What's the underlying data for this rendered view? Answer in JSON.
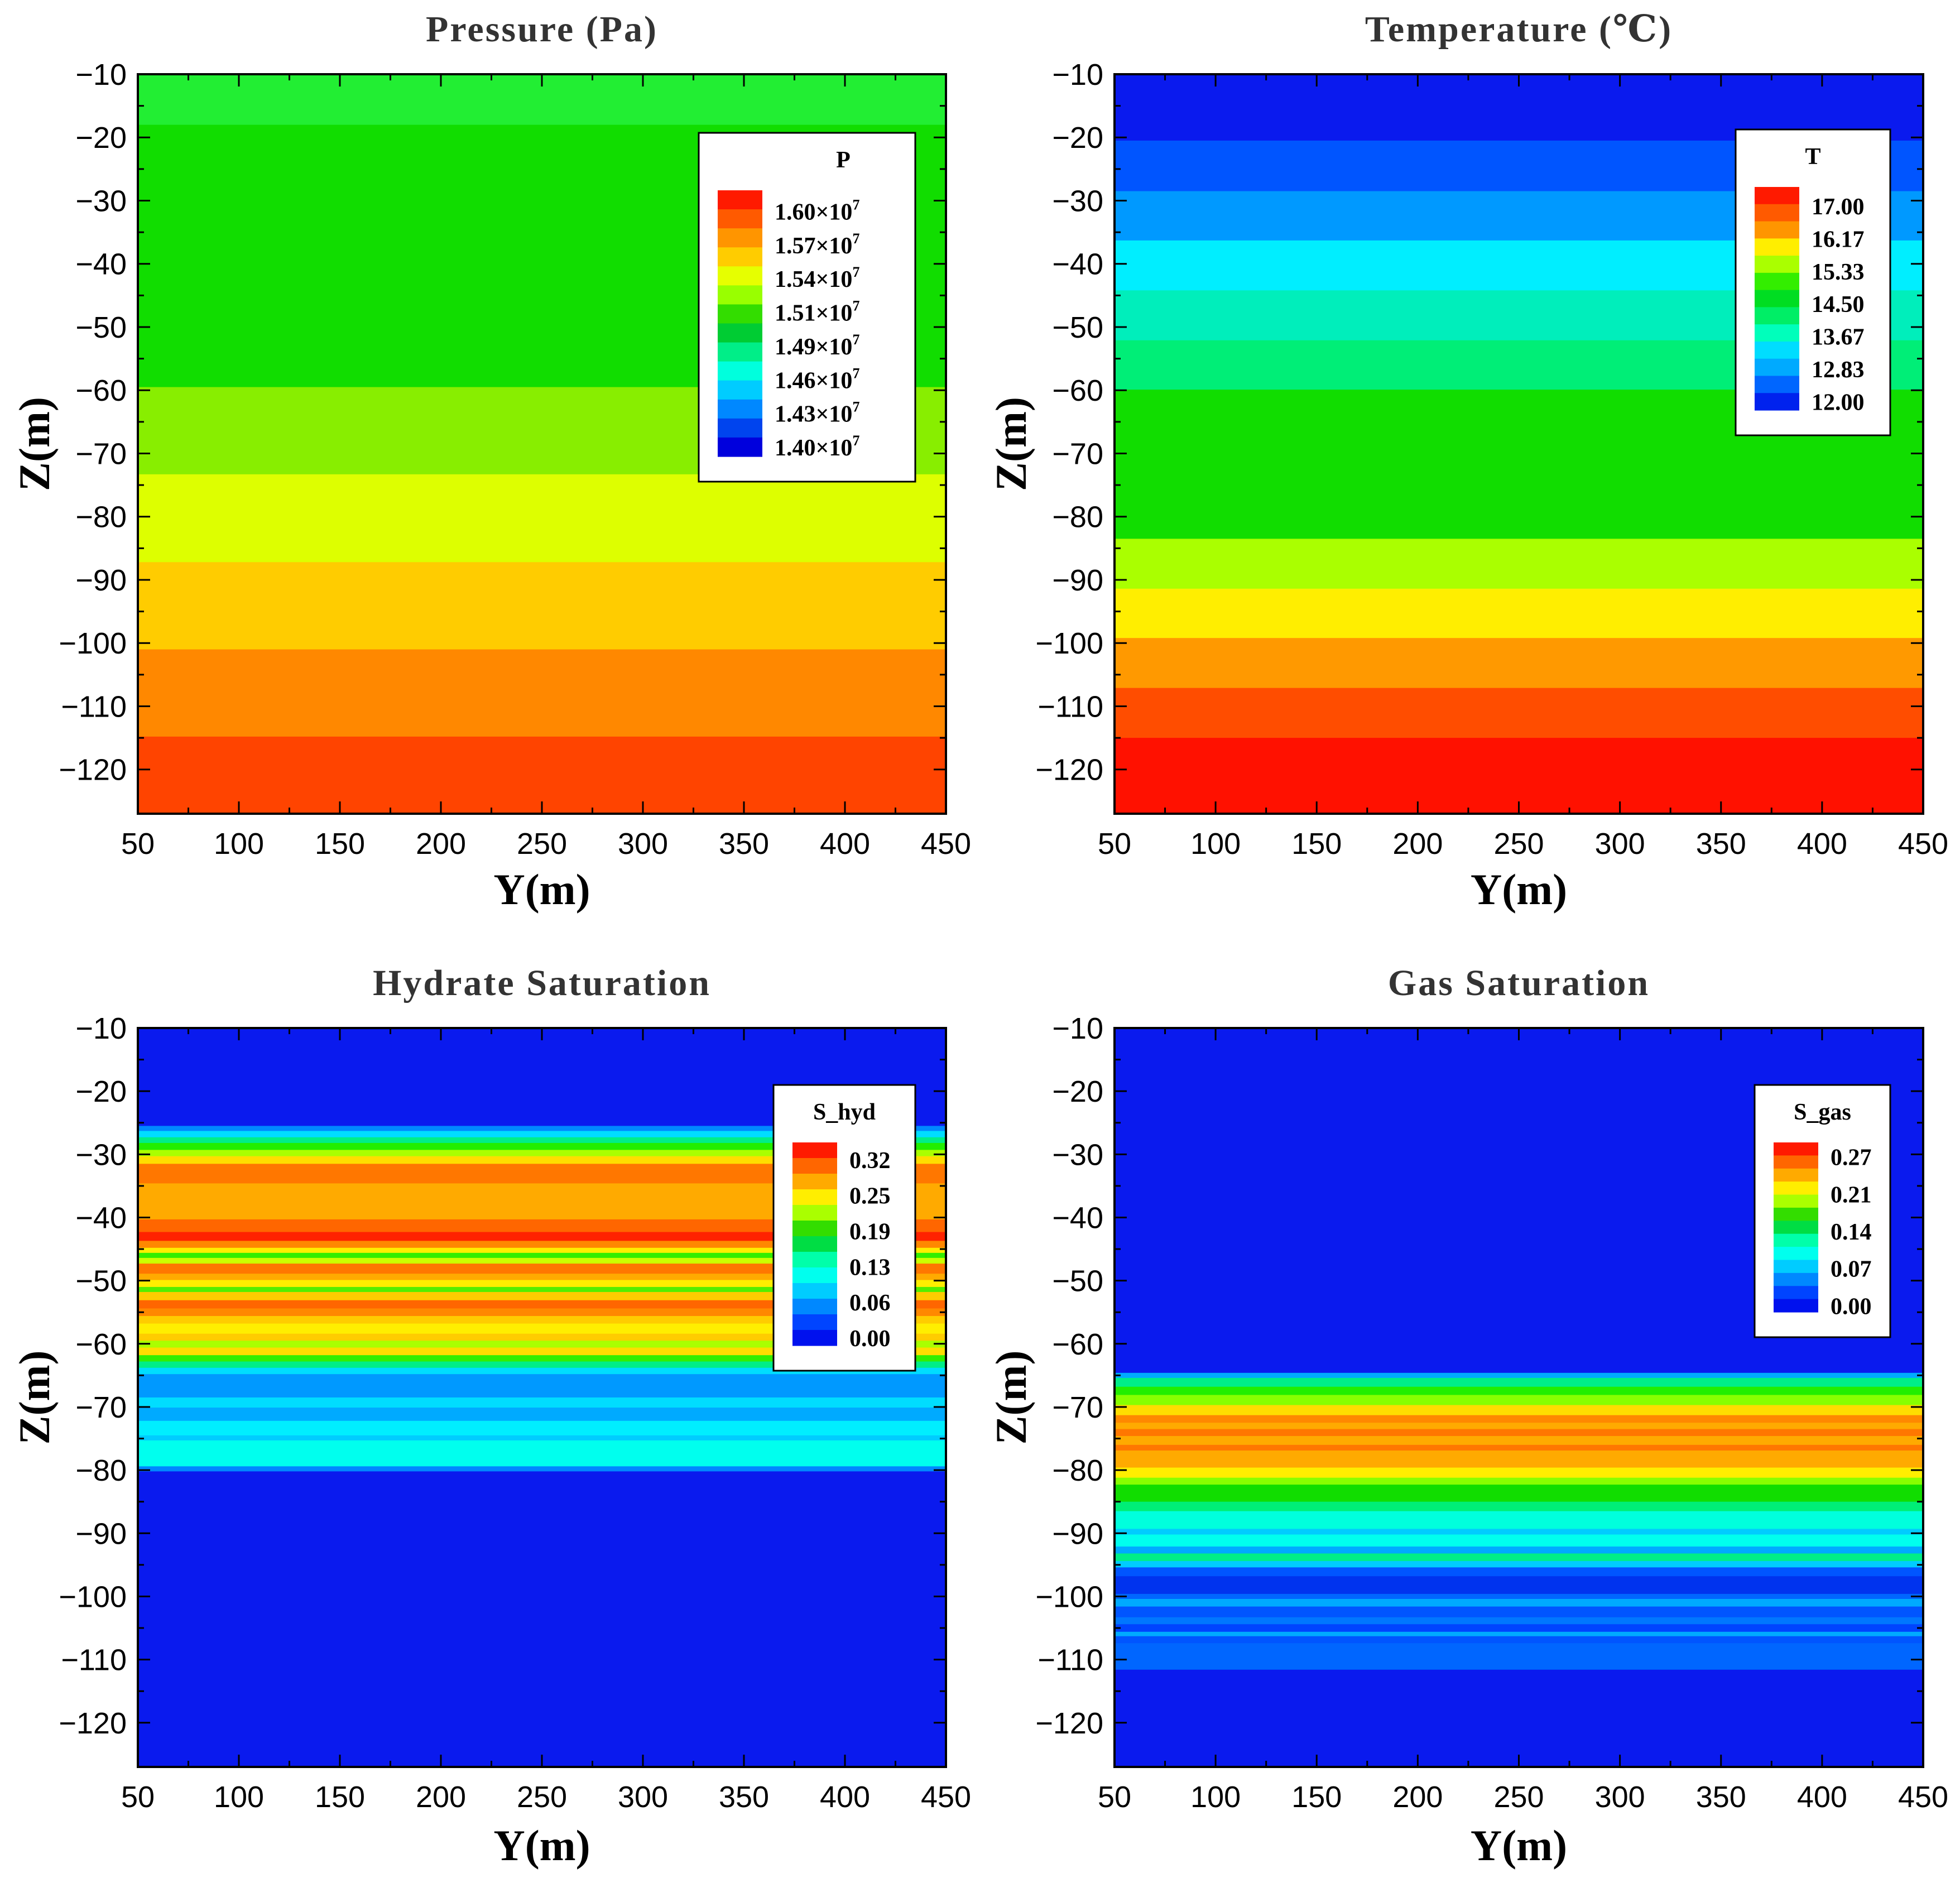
{
  "chart_data": [
    {
      "type": "heatmap",
      "title": "Pressure (Pa)",
      "xlabel": "Y(m)",
      "ylabel": "Z(m)",
      "xlim": [
        50,
        450
      ],
      "ylim": [
        -127,
        -10
      ],
      "xticks": [
        "50",
        "100",
        "150",
        "200",
        "250",
        "300",
        "350",
        "400",
        "450"
      ],
      "yticks": [
        "-10",
        "-20",
        "-30",
        "-40",
        "-50",
        "-60",
        "-70",
        "-80",
        "-90",
        "-100",
        "-110",
        "-120"
      ],
      "legend": {
        "title": "P",
        "position": "top-right",
        "labels": [
          {
            "mantissa": "1.60×10",
            "exp": "7"
          },
          {
            "mantissa": "1.57×10",
            "exp": "7"
          },
          {
            "mantissa": "1.54×10",
            "exp": "7"
          },
          {
            "mantissa": "1.51×10",
            "exp": "7"
          },
          {
            "mantissa": "1.49×10",
            "exp": "7"
          },
          {
            "mantissa": "1.46×10",
            "exp": "7"
          },
          {
            "mantissa": "1.43×10",
            "exp": "7"
          },
          {
            "mantissa": "1.40×10",
            "exp": "7"
          }
        ],
        "colors": [
          "#ff1a00",
          "#ff5a00",
          "#ff9500",
          "#ffcc00",
          "#e6ff00",
          "#99ff00",
          "#33dd00",
          "#00cc33",
          "#00ee88",
          "#00ffdd",
          "#00ccff",
          "#0088ff",
          "#0044ee",
          "#0000dd"
        ]
      },
      "bands": [
        {
          "z_top": -10,
          "z_bottom": -18,
          "color": "#22ee33"
        },
        {
          "z_top": -18,
          "z_bottom": -59.5,
          "color": "#11dd00"
        },
        {
          "z_top": -59.5,
          "z_bottom": -73.3,
          "color": "#88ee00"
        },
        {
          "z_top": -73.3,
          "z_bottom": -87.2,
          "color": "#ddff00"
        },
        {
          "z_top": -87.2,
          "z_bottom": -101,
          "color": "#ffcc00"
        },
        {
          "z_top": -101,
          "z_bottom": -114.8,
          "color": "#ff8800"
        },
        {
          "z_top": -114.8,
          "z_bottom": -127,
          "color": "#ff4400"
        }
      ]
    },
    {
      "type": "heatmap",
      "title": "Temperature (℃)",
      "xlabel": "Y(m)",
      "ylabel": "Z(m)",
      "xlim": [
        50,
        450
      ],
      "ylim": [
        -127,
        -10
      ],
      "xticks": [
        "50",
        "100",
        "150",
        "200",
        "250",
        "300",
        "350",
        "400",
        "450"
      ],
      "yticks": [
        "-10",
        "-20",
        "-30",
        "-40",
        "-50",
        "-60",
        "-70",
        "-80",
        "-90",
        "-100",
        "-110",
        "-120"
      ],
      "legend": {
        "title": "T",
        "position": "top-right",
        "labels": [
          "17.00",
          "16.17",
          "15.33",
          "14.50",
          "13.67",
          "12.83",
          "12.00"
        ],
        "colors": [
          "#ff1a00",
          "#ff5a00",
          "#ff9500",
          "#ffee00",
          "#aaff00",
          "#33ee00",
          "#00dd22",
          "#00ee66",
          "#00ffbb",
          "#00ddff",
          "#00aaff",
          "#0066ff",
          "#0022ee"
        ]
      },
      "bands": [
        {
          "z_top": -10,
          "z_bottom": -20.5,
          "color": "#0a1aee"
        },
        {
          "z_top": -20.5,
          "z_bottom": -28.5,
          "color": "#0055ff"
        },
        {
          "z_top": -28.5,
          "z_bottom": -36.3,
          "color": "#0099ff"
        },
        {
          "z_top": -36.3,
          "z_bottom": -44.2,
          "color": "#00eeff"
        },
        {
          "z_top": -44.2,
          "z_bottom": -52.1,
          "color": "#00eebb"
        },
        {
          "z_top": -52.1,
          "z_bottom": -59.9,
          "color": "#00ee77"
        },
        {
          "z_top": -59.9,
          "z_bottom": -83.5,
          "color": "#11dd00"
        },
        {
          "z_top": -83.5,
          "z_bottom": -91.4,
          "color": "#aaff00"
        },
        {
          "z_top": -91.4,
          "z_bottom": -99.2,
          "color": "#ffee00"
        },
        {
          "z_top": -99.2,
          "z_bottom": -107.1,
          "color": "#ff9900"
        },
        {
          "z_top": -107.1,
          "z_bottom": -115,
          "color": "#ff4d00"
        },
        {
          "z_top": -115,
          "z_bottom": -127,
          "color": "#ff1100"
        }
      ]
    },
    {
      "type": "heatmap",
      "title": "Hydrate Saturation",
      "xlabel": "Y(m)",
      "ylabel": "Z(m)",
      "xlim": [
        50,
        450
      ],
      "ylim": [
        -127,
        -10
      ],
      "xticks": [
        "50",
        "100",
        "150",
        "200",
        "250",
        "300",
        "350",
        "400",
        "450"
      ],
      "yticks": [
        "-10",
        "-20",
        "-30",
        "-40",
        "-50",
        "-60",
        "-70",
        "-80",
        "-90",
        "-100",
        "-110",
        "-120"
      ],
      "legend": {
        "title": "S_hyd",
        "position": "top-right",
        "labels": [
          "0.32",
          "0.25",
          "0.19",
          "0.13",
          "0.06",
          "0.00"
        ],
        "colors": [
          "#ff1a00",
          "#ff6600",
          "#ffaa00",
          "#ffee00",
          "#aaff00",
          "#33dd00",
          "#00dd44",
          "#00ffaa",
          "#00ffee",
          "#00ccff",
          "#0088ff",
          "#0044ff",
          "#0011ee"
        ]
      },
      "bands": [
        {
          "z_top": -10,
          "z_bottom": -25.5,
          "color": "#0a1aee"
        },
        {
          "z_top": -25.5,
          "z_bottom": -26.3,
          "color": "#0088ff"
        },
        {
          "z_top": -26.3,
          "z_bottom": -27.3,
          "color": "#00ddff"
        },
        {
          "z_top": -27.3,
          "z_bottom": -28.2,
          "color": "#00ee88"
        },
        {
          "z_top": -28.2,
          "z_bottom": -29.3,
          "color": "#22ee00"
        },
        {
          "z_top": -29.3,
          "z_bottom": -30.3,
          "color": "#aaff00"
        },
        {
          "z_top": -30.3,
          "z_bottom": -31.5,
          "color": "#ffdd00"
        },
        {
          "z_top": -31.5,
          "z_bottom": -34.6,
          "color": "#ff7700"
        },
        {
          "z_top": -34.6,
          "z_bottom": -40.3,
          "color": "#ffaa00"
        },
        {
          "z_top": -40.3,
          "z_bottom": -42.3,
          "color": "#ff6600"
        },
        {
          "z_top": -42.3,
          "z_bottom": -43.7,
          "color": "#ff2200"
        },
        {
          "z_top": -43.7,
          "z_bottom": -44.8,
          "color": "#ff8800"
        },
        {
          "z_top": -44.8,
          "z_bottom": -45.6,
          "color": "#ffee00"
        },
        {
          "z_top": -45.6,
          "z_bottom": -46.4,
          "color": "#33ee00"
        },
        {
          "z_top": -46.4,
          "z_bottom": -47.3,
          "color": "#ccff00"
        },
        {
          "z_top": -47.3,
          "z_bottom": -48.9,
          "color": "#ff7700"
        },
        {
          "z_top": -48.9,
          "z_bottom": -49.9,
          "color": "#ffaa00"
        },
        {
          "z_top": -49.9,
          "z_bottom": -51,
          "color": "#ffee00"
        },
        {
          "z_top": -51,
          "z_bottom": -51.8,
          "color": "#55ee00"
        },
        {
          "z_top": -51.8,
          "z_bottom": -53.1,
          "color": "#ffcc00"
        },
        {
          "z_top": -53.1,
          "z_bottom": -54.4,
          "color": "#ff6600"
        },
        {
          "z_top": -54.4,
          "z_bottom": -55.6,
          "color": "#ff8800"
        },
        {
          "z_top": -55.6,
          "z_bottom": -56.8,
          "color": "#ffcc00"
        },
        {
          "z_top": -56.8,
          "z_bottom": -58.4,
          "color": "#ffee00"
        },
        {
          "z_top": -58.4,
          "z_bottom": -59.5,
          "color": "#ffcc00"
        },
        {
          "z_top": -59.5,
          "z_bottom": -60.6,
          "color": "#aaff00"
        },
        {
          "z_top": -60.6,
          "z_bottom": -61.8,
          "color": "#ffdd00"
        },
        {
          "z_top": -61.8,
          "z_bottom": -62.8,
          "color": "#33ee00"
        },
        {
          "z_top": -62.8,
          "z_bottom": -63.8,
          "color": "#00ee88"
        },
        {
          "z_top": -63.8,
          "z_bottom": -64.8,
          "color": "#00ddff"
        },
        {
          "z_top": -64.8,
          "z_bottom": -68.5,
          "color": "#0099ff"
        },
        {
          "z_top": -68.5,
          "z_bottom": -70.1,
          "color": "#00ddff"
        },
        {
          "z_top": -70.1,
          "z_bottom": -72.2,
          "color": "#00aaff"
        },
        {
          "z_top": -72.2,
          "z_bottom": -74.5,
          "color": "#00eeff"
        },
        {
          "z_top": -74.5,
          "z_bottom": -75.3,
          "color": "#00ccff"
        },
        {
          "z_top": -75.3,
          "z_bottom": -79.4,
          "color": "#00ffee"
        },
        {
          "z_top": -79.4,
          "z_bottom": -80.2,
          "color": "#0088ff"
        },
        {
          "z_top": -80.2,
          "z_bottom": -127,
          "color": "#0a1aee"
        }
      ]
    },
    {
      "type": "heatmap",
      "title": "Gas Saturation",
      "xlabel": "Y(m)",
      "ylabel": "Z(m)",
      "xlim": [
        50,
        450
      ],
      "ylim": [
        -127,
        -10
      ],
      "xticks": [
        "50",
        "100",
        "150",
        "200",
        "250",
        "300",
        "350",
        "400",
        "450"
      ],
      "yticks": [
        "-10",
        "-20",
        "-30",
        "-40",
        "-50",
        "-60",
        "-70",
        "-80",
        "-90",
        "-100",
        "-110",
        "-120"
      ],
      "legend": {
        "title": "S_gas",
        "position": "top-right",
        "labels": [
          "0.27",
          "0.21",
          "0.14",
          "0.07",
          "0.00"
        ],
        "colors": [
          "#ff1a00",
          "#ff6600",
          "#ffaa00",
          "#ffee00",
          "#aaff00",
          "#33dd00",
          "#00dd44",
          "#00ffaa",
          "#00ffee",
          "#00ccff",
          "#0088ff",
          "#0044ff",
          "#0011ee"
        ]
      },
      "bands": [
        {
          "z_top": -10,
          "z_bottom": -64.6,
          "color": "#0a1aee"
        },
        {
          "z_top": -64.6,
          "z_bottom": -65.4,
          "color": "#00aaff"
        },
        {
          "z_top": -65.4,
          "z_bottom": -66.8,
          "color": "#00ee88"
        },
        {
          "z_top": -66.8,
          "z_bottom": -68.1,
          "color": "#22ee00"
        },
        {
          "z_top": -68.1,
          "z_bottom": -69.7,
          "color": "#88ff00"
        },
        {
          "z_top": -69.7,
          "z_bottom": -71.3,
          "color": "#ffdd00"
        },
        {
          "z_top": -71.3,
          "z_bottom": -72.5,
          "color": "#ff8800"
        },
        {
          "z_top": -72.5,
          "z_bottom": -73.5,
          "color": "#ffaa00"
        },
        {
          "z_top": -73.5,
          "z_bottom": -74.6,
          "color": "#ff7700"
        },
        {
          "z_top": -74.6,
          "z_bottom": -76,
          "color": "#ffaa00"
        },
        {
          "z_top": -76,
          "z_bottom": -76.9,
          "color": "#ff7700"
        },
        {
          "z_top": -76.9,
          "z_bottom": -79.6,
          "color": "#ffaa00"
        },
        {
          "z_top": -79.6,
          "z_bottom": -81.2,
          "color": "#ffee00"
        },
        {
          "z_top": -81.2,
          "z_bottom": -82.3,
          "color": "#88ff00"
        },
        {
          "z_top": -82.3,
          "z_bottom": -85,
          "color": "#11dd00"
        },
        {
          "z_top": -85,
          "z_bottom": -86.5,
          "color": "#00ee77"
        },
        {
          "z_top": -86.5,
          "z_bottom": -89.3,
          "color": "#00ffdd"
        },
        {
          "z_top": -89.3,
          "z_bottom": -90.2,
          "color": "#00ccff"
        },
        {
          "z_top": -90.2,
          "z_bottom": -92.1,
          "color": "#00ffee"
        },
        {
          "z_top": -92.1,
          "z_bottom": -93.2,
          "color": "#00aaff"
        },
        {
          "z_top": -93.2,
          "z_bottom": -94.4,
          "color": "#00ee88"
        },
        {
          "z_top": -94.4,
          "z_bottom": -95.4,
          "color": "#00ccff"
        },
        {
          "z_top": -95.4,
          "z_bottom": -96.8,
          "color": "#0055ff"
        },
        {
          "z_top": -96.8,
          "z_bottom": -99.6,
          "color": "#0033ee"
        },
        {
          "z_top": -99.6,
          "z_bottom": -100.4,
          "color": "#0066ff"
        },
        {
          "z_top": -100.4,
          "z_bottom": -101.6,
          "color": "#00aaff"
        },
        {
          "z_top": -101.6,
          "z_bottom": -103.3,
          "color": "#0055ff"
        },
        {
          "z_top": -103.3,
          "z_bottom": -104.4,
          "color": "#0077ff"
        },
        {
          "z_top": -104.4,
          "z_bottom": -105.6,
          "color": "#0044ff"
        },
        {
          "z_top": -105.6,
          "z_bottom": -106.3,
          "color": "#00aaff"
        },
        {
          "z_top": -106.3,
          "z_bottom": -107.4,
          "color": "#0055ff"
        },
        {
          "z_top": -107.4,
          "z_bottom": -111.6,
          "color": "#0066ff"
        },
        {
          "z_top": -111.6,
          "z_bottom": -127,
          "color": "#0a1aee"
        }
      ]
    }
  ]
}
